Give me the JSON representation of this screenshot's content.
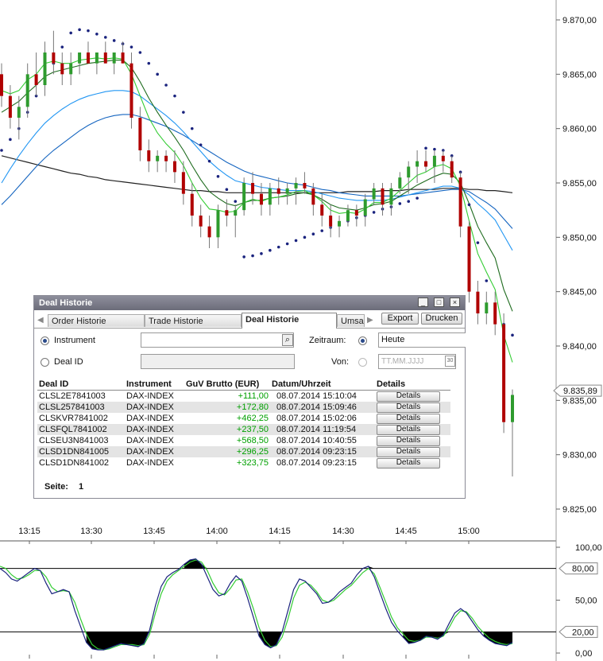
{
  "price_axis": {
    "ticks": [
      "9.870,00",
      "9.865,00",
      "9.860,00",
      "9.855,00",
      "9.850,00",
      "9.845,00",
      "9.840,00",
      "9.835,00",
      "9.830,00",
      "9.825,00"
    ],
    "current_price": "9.835,89"
  },
  "time_axis": {
    "ticks": [
      "13:15",
      "13:30",
      "13:45",
      "14:00",
      "14:15",
      "14:30",
      "14:45",
      "15:00"
    ]
  },
  "oscillator_axis": {
    "ticks": [
      "100,00",
      "80,00",
      "50,00",
      "20,00",
      "0,00"
    ],
    "level_tags": [
      "80,00",
      "20,00"
    ]
  },
  "chart_data": {
    "type": "candlestick",
    "price_range": [
      9822.5,
      9872
    ],
    "x_range_minutes": [
      "13:06",
      "15:12"
    ],
    "candles": [
      [
        9865,
        9866,
        9862,
        9863
      ],
      [
        9863,
        9864,
        9860,
        9861
      ],
      [
        9861,
        9863,
        9859,
        9862
      ],
      [
        9862,
        9866,
        9861,
        9865
      ],
      [
        9865,
        9867,
        9863,
        9864
      ],
      [
        9864,
        9868,
        9863,
        9867
      ],
      [
        9867,
        9869,
        9865,
        9866
      ],
      [
        9866,
        9867,
        9864,
        9865
      ],
      [
        9865,
        9867,
        9864,
        9866
      ],
      [
        9866,
        9867,
        9865,
        9867
      ],
      [
        9867,
        9868,
        9866,
        9866
      ],
      [
        9866,
        9867,
        9865,
        9867
      ],
      [
        9867,
        9868,
        9866,
        9866
      ],
      [
        9866,
        9867,
        9865,
        9867
      ],
      [
        9867,
        9868,
        9866,
        9866
      ],
      [
        9866,
        9867,
        9860,
        9861
      ],
      [
        9861,
        9862,
        9857,
        9858
      ],
      [
        9858,
        9859,
        9856,
        9857
      ],
      [
        9857,
        9858,
        9856,
        9857.5
      ],
      [
        9857.5,
        9858,
        9856,
        9857
      ],
      [
        9857,
        9858,
        9855,
        9856
      ],
      [
        9856,
        9857,
        9853,
        9854
      ],
      [
        9854,
        9855,
        9851,
        9852
      ],
      [
        9852,
        9853,
        9850,
        9851
      ],
      [
        9851,
        9852,
        9849,
        9850
      ],
      [
        9850,
        9853,
        9849,
        9852.5
      ],
      [
        9852.5,
        9853.5,
        9851,
        9852
      ],
      [
        9852,
        9853,
        9850,
        9852.5
      ],
      [
        9852.5,
        9855.5,
        9852,
        9855
      ],
      [
        9855,
        9856,
        9853,
        9854
      ],
      [
        9854,
        9855,
        9852,
        9853
      ],
      [
        9853,
        9855,
        9852,
        9854.5
      ],
      [
        9854.5,
        9855.5,
        9853,
        9854
      ],
      [
        9854,
        9855,
        9853,
        9854.5
      ],
      [
        9854.5,
        9855.5,
        9853,
        9855
      ],
      [
        9855,
        9856,
        9854,
        9854.5
      ],
      [
        9854.5,
        9855,
        9852,
        9853
      ],
      [
        9853,
        9854,
        9851,
        9852
      ],
      [
        9852,
        9853,
        9850,
        9851
      ],
      [
        9851,
        9852,
        9850,
        9851.5
      ],
      [
        9851.5,
        9853,
        9851,
        9852.5
      ],
      [
        9852.5,
        9853,
        9851,
        9852
      ],
      [
        9852,
        9854,
        9851,
        9853.5
      ],
      [
        9853.5,
        9855,
        9853,
        9854.5
      ],
      [
        9854.5,
        9855,
        9852,
        9853
      ],
      [
        9853,
        9855,
        9852,
        9854.5
      ],
      [
        9854.5,
        9856,
        9854,
        9855.5
      ],
      [
        9855.5,
        9857,
        9854,
        9856.5
      ],
      [
        9856.5,
        9858,
        9855,
        9857
      ],
      [
        9857,
        9858,
        9856,
        9856.5
      ],
      [
        9856.5,
        9858,
        9855,
        9857.5
      ],
      [
        9857.5,
        9858,
        9856,
        9857
      ],
      [
        9857,
        9857.5,
        9855,
        9855.5
      ],
      [
        9855.5,
        9856,
        9850,
        9851
      ],
      [
        9851,
        9851.5,
        9844,
        9845
      ],
      [
        9845,
        9846,
        9842,
        9843
      ],
      [
        9843,
        9845,
        9842,
        9844
      ],
      [
        9844,
        9845,
        9841,
        9842
      ],
      [
        9842,
        9843,
        9832,
        9833
      ],
      [
        9833,
        9836,
        9828,
        9835.5
      ]
    ],
    "ema_fast": [
      9863.5,
      9863.2,
      9863.5,
      9864.5,
      9865,
      9866,
      9866.2,
      9866,
      9866,
      9866.3,
      9866.4,
      9866.5,
      9866.4,
      9866.5,
      9866.4,
      9865,
      9863,
      9861,
      9859.6,
      9858.6,
      9857.8,
      9856.6,
      9855,
      9853.6,
      9852.6,
      9852.5,
      9852.3,
      9852.4,
      9853.2,
      9853.5,
      9853.3,
      9853.6,
      9853.7,
      9853.9,
      9854.2,
      9854.3,
      9853.9,
      9853.3,
      9852.5,
      9852.2,
      9852.3,
      9852.2,
      9852.6,
      9853.2,
      9853.2,
      9853.6,
      9854.3,
      9855,
      9855.7,
      9856,
      9856.5,
      9856.7,
      9856.3,
      9854.7,
      9851.5,
      9848.5,
      9846.8,
      9845.2,
      9841,
      9838.5
    ],
    "ema_mid": [
      9861.5,
      9862,
      9862.5,
      9863.3,
      9864,
      9864.8,
      9865.2,
      9865.4,
      9865.6,
      9865.8,
      9866,
      9866.1,
      9866.2,
      9866.3,
      9866.3,
      9865.6,
      9864.3,
      9862.8,
      9861.5,
      9860.3,
      9859.2,
      9858,
      9856.6,
      9855.3,
      9854.2,
      9853.6,
      9853.1,
      9852.9,
      9853.2,
      9853.4,
      9853.4,
      9853.6,
      9853.7,
      9853.8,
      9854,
      9854.1,
      9853.9,
      9853.5,
      9853,
      9852.7,
      9852.6,
      9852.5,
      9852.7,
      9853,
      9853.1,
      9853.3,
      9853.8,
      9854.3,
      9854.8,
      9855.2,
      9855.6,
      9855.9,
      9855.8,
      9855,
      9853.1,
      9851,
      9849.5,
      9848.1,
      9845.2,
      9843.2
    ],
    "ema_slow": [
      9855,
      9856.3,
      9857.5,
      9858.6,
      9859.6,
      9860.5,
      9861.2,
      9861.8,
      9862.3,
      9862.7,
      9863,
      9863.2,
      9863.4,
      9863.5,
      9863.5,
      9863.4,
      9863,
      9862.4,
      9861.8,
      9861.2,
      9860.5,
      9859.7,
      9858.8,
      9857.9,
      9857,
      9856.3,
      9855.7,
      9855.2,
      9855,
      9854.8,
      9854.6,
      9854.5,
      9854.4,
      9854.3,
      9854.3,
      9854.3,
      9854.2,
      9854,
      9853.8,
      9853.6,
      9853.5,
      9853.4,
      9853.4,
      9853.4,
      9853.4,
      9853.5,
      9853.7,
      9853.9,
      9854.1,
      9854.3,
      9854.5,
      9854.7,
      9854.7,
      9854.5,
      9853.9,
      9853.1,
      9852.4,
      9851.6,
      9850.2,
      9848.8
    ],
    "sma_long_cyan": [
      9853,
      9853.8,
      9854.7,
      9855.6,
      9856.5,
      9857.3,
      9858,
      9858.6,
      9859.2,
      9859.8,
      9860.3,
      9860.7,
      9861,
      9861.2,
      9861.3,
      9861.3,
      9861.1,
      9860.8,
      9860.5,
      9860.2,
      9859.8,
      9859.4,
      9858.9,
      9858.4,
      9857.9,
      9857.4,
      9856.9,
      9856.5,
      9856.1,
      9855.8,
      9855.6,
      9855.4,
      9855.2,
      9855,
      9854.9,
      9854.8,
      9854.6,
      9854.4,
      9854.3,
      9854.1,
      9854,
      9853.9,
      9853.8,
      9853.8,
      9853.8,
      9853.8,
      9853.8,
      9853.9,
      9854,
      9854.1,
      9854.2,
      9854.3,
      9854.4,
      9854.4,
      9854.2,
      9853.7,
      9853.2,
      9852.6,
      9851.7,
      9850.8
    ],
    "sma_200_black": [
      9857.5,
      9857.3,
      9857.1,
      9856.9,
      9856.7,
      9856.5,
      9856.3,
      9856.1,
      9855.9,
      9855.8,
      9855.6,
      9855.5,
      9855.3,
      9855.2,
      9855.1,
      9855,
      9854.9,
      9854.8,
      9854.7,
      9854.6,
      9854.5,
      9854.4,
      9854.3,
      9854.3,
      9854.2,
      9854.2,
      9854.1,
      9854.1,
      9854.1,
      9854.1,
      9854.1,
      9854.1,
      9854.1,
      9854.1,
      9854.1,
      9854.1,
      9854.1,
      9854.1,
      9854.1,
      9854.1,
      9854.2,
      9854.2,
      9854.2,
      9854.2,
      9854.3,
      9854.3,
      9854.3,
      9854.4,
      9854.4,
      9854.4,
      9854.4,
      9854.5,
      9854.5,
      9854.5,
      9854.4,
      9854.4,
      9854.3,
      9854.3,
      9854.2,
      9854.1
    ],
    "parabolic_sar": [
      9858,
      9859,
      9860,
      9861.5,
      9863,
      9864.5,
      9866,
      9867.5,
      9868.8,
      9869.1,
      9869,
      9868.7,
      9868.4,
      9868.1,
      9867.8,
      9867.5,
      9867,
      9866,
      9865,
      9864,
      9863,
      9861.5,
      9860,
      9858.5,
      9857,
      9855.6,
      9854.4,
      9853.3,
      9848.2,
      9848.3,
      9848.5,
      9848.8,
      9849.1,
      9849.4,
      9849.7,
      9850,
      9850.3,
      9850.6,
      9850.9,
      9851.2,
      9851.5,
      9851.8,
      9852,
      9852.3,
      9852.6,
      9852.8,
      9853.1,
      9853.3,
      9853.6,
      9858.2,
      9858.1,
      9858,
      9857.5,
      9856,
      9853,
      9849.5,
      9846,
      9843,
      9842,
      9841
    ],
    "stoch_k": [
      80,
      76,
      70,
      68,
      72,
      76,
      80,
      78,
      66,
      56,
      58,
      60,
      58,
      40,
      25,
      10,
      4,
      3,
      3,
      5,
      7,
      9,
      8,
      7,
      6,
      9,
      22,
      45,
      63,
      72,
      76,
      79,
      84,
      88,
      89,
      84,
      72,
      60,
      54,
      56,
      66,
      73,
      68,
      52,
      34,
      16,
      8,
      5,
      8,
      20,
      40,
      60,
      70,
      68,
      62,
      56,
      47,
      48,
      52,
      58,
      62,
      66,
      74,
      80,
      82,
      72,
      57,
      42,
      29,
      21,
      15,
      9,
      10,
      12,
      16,
      15,
      13,
      17,
      28,
      38,
      42,
      38,
      30,
      22,
      16,
      12,
      9,
      8,
      7,
      10
    ],
    "stoch_d": [
      82,
      80,
      74,
      70,
      71,
      74,
      78,
      78,
      72,
      62,
      58,
      59,
      58,
      48,
      32,
      18,
      8,
      4,
      3,
      4,
      6,
      8,
      8,
      8,
      7,
      8,
      18,
      38,
      56,
      68,
      74,
      78,
      82,
      86,
      88,
      86,
      78,
      66,
      57,
      55,
      61,
      69,
      70,
      58,
      42,
      24,
      12,
      6,
      7,
      15,
      32,
      52,
      64,
      67,
      64,
      58,
      50,
      48,
      50,
      55,
      60,
      64,
      70,
      76,
      80,
      75,
      62,
      48,
      34,
      24,
      18,
      12,
      11,
      12,
      15,
      15,
      14,
      16,
      24,
      34,
      40,
      39,
      33,
      25,
      19,
      14,
      11,
      9,
      8,
      9
    ]
  },
  "deal_window": {
    "title": "Deal Historie",
    "tabs": [
      "Order Historie",
      "Trade Historie",
      "Deal Historie",
      "Umsa"
    ],
    "buttons": {
      "export": "Export",
      "print": "Drucken"
    },
    "filter": {
      "instrument_label": "Instrument",
      "instrument_value": "",
      "deal_id_label": "Deal ID",
      "deal_id_value": "",
      "period_label": "Zeitraum:",
      "period_value": "Heute",
      "from_label": "Von:",
      "from_placeholder": "TT.MM.JJJJ"
    },
    "table": {
      "columns": [
        "Deal ID",
        "Instrument",
        "GuV Brutto (EUR)",
        "Datum/Uhrzeit",
        "Details"
      ],
      "rows": [
        {
          "id": "CLSL2E7841003",
          "instrument": "DAX-INDEX",
          "guv": "+111,00",
          "datetime": "08.07.2014 15:10:04",
          "details": "Details"
        },
        {
          "id": "CLSL257841003",
          "instrument": "DAX-INDEX",
          "guv": "+172,80",
          "datetime": "08.07.2014 15:09:46",
          "details": "Details"
        },
        {
          "id": "CLSKVR7841002",
          "instrument": "DAX-INDEX",
          "guv": "+462,25",
          "datetime": "08.07.2014 15:02:06",
          "details": "Details"
        },
        {
          "id": "CLSFQL7841002",
          "instrument": "DAX-INDEX",
          "guv": "+237,50",
          "datetime": "08.07.2014 11:19:54",
          "details": "Details"
        },
        {
          "id": "CLSEU3N841003",
          "instrument": "DAX-INDEX",
          "guv": "+568,50",
          "datetime": "08.07.2014 10:40:55",
          "details": "Details"
        },
        {
          "id": "CLSD1DN841005",
          "instrument": "DAX-INDEX",
          "guv": "+296,25",
          "datetime": "08.07.2014 09:23:15",
          "details": "Details"
        },
        {
          "id": "CLSD1DN841002",
          "instrument": "DAX-INDEX",
          "guv": "+323,75",
          "datetime": "08.07.2014 09:23:15",
          "details": "Details"
        }
      ]
    },
    "page_label": "Seite:",
    "page_number": "1"
  },
  "colors": {
    "up": "#2e9b2e",
    "down": "#b00000",
    "sar": "#1a237e",
    "ema_fast": "#33cc33",
    "ema_mid": "#1e6b1e",
    "ema_slow": "#2196f3",
    "sma_long": "#1565c0",
    "sma_200": "#222222",
    "stoch_k": "#1a237e",
    "stoch_d": "#33cc33",
    "guv_positive": "#00a000"
  }
}
